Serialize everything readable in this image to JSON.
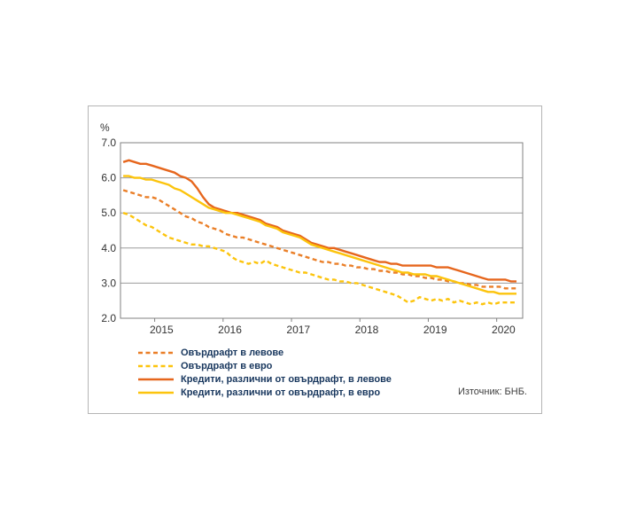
{
  "source": "Източник: БНБ.",
  "chart_data": {
    "type": "line",
    "title": "",
    "xlabel": "",
    "ylabel": "%",
    "ylim": [
      2.0,
      7.0
    ],
    "yticks": [
      2.0,
      3.0,
      4.0,
      5.0,
      6.0,
      7.0
    ],
    "xlim": [
      2014.5,
      2020.38
    ],
    "x_start": 2014.54,
    "x_step_years": 0.08333,
    "xticks": [
      2015,
      2016,
      2017,
      2018,
      2019,
      2020
    ],
    "xtick_labels": [
      "2015",
      "2016",
      "2017",
      "2018",
      "2019",
      "2020"
    ],
    "xlabel_offset": 0.1,
    "grid": "horizontal",
    "legend_position": "bottom-left",
    "x_unit": "monthly",
    "series": [
      {
        "name": "Овърдрафт в левове",
        "line_style": "dashed",
        "color": "#ea7f28",
        "values": [
          5.65,
          5.6,
          5.55,
          5.5,
          5.45,
          5.45,
          5.4,
          5.3,
          5.2,
          5.1,
          5.0,
          4.9,
          4.85,
          4.75,
          4.7,
          4.6,
          4.55,
          4.5,
          4.4,
          4.35,
          4.3,
          4.3,
          4.25,
          4.2,
          4.15,
          4.1,
          4.05,
          4.0,
          3.95,
          3.9,
          3.85,
          3.8,
          3.75,
          3.7,
          3.65,
          3.6,
          3.6,
          3.55,
          3.55,
          3.5,
          3.5,
          3.45,
          3.45,
          3.4,
          3.4,
          3.35,
          3.35,
          3.3,
          3.3,
          3.25,
          3.25,
          3.2,
          3.2,
          3.15,
          3.15,
          3.1,
          3.1,
          3.05,
          3.05,
          3.0,
          3.0,
          2.95,
          2.95,
          2.9,
          2.9,
          2.9,
          2.9,
          2.85,
          2.85,
          2.85
        ]
      },
      {
        "name": "Овърдрафт в евро",
        "line_style": "dashed",
        "color": "#fcc40d",
        "values": [
          5.0,
          4.95,
          4.85,
          4.75,
          4.65,
          4.6,
          4.5,
          4.4,
          4.3,
          4.25,
          4.2,
          4.15,
          4.1,
          4.1,
          4.05,
          4.05,
          4.0,
          3.95,
          3.9,
          3.75,
          3.65,
          3.6,
          3.55,
          3.6,
          3.55,
          3.65,
          3.55,
          3.5,
          3.45,
          3.4,
          3.35,
          3.3,
          3.3,
          3.25,
          3.2,
          3.15,
          3.1,
          3.1,
          3.05,
          3.05,
          3.0,
          3.0,
          2.95,
          2.9,
          2.85,
          2.8,
          2.75,
          2.7,
          2.65,
          2.55,
          2.45,
          2.5,
          2.6,
          2.55,
          2.5,
          2.55,
          2.5,
          2.55,
          2.45,
          2.5,
          2.45,
          2.4,
          2.45,
          2.4,
          2.45,
          2.4,
          2.45,
          2.45,
          2.45,
          2.45
        ]
      },
      {
        "name": "Кредити, различни от овърдрафт, в левове",
        "line_style": "solid",
        "color": "#e6661d",
        "values": [
          6.45,
          6.5,
          6.45,
          6.4,
          6.4,
          6.35,
          6.3,
          6.25,
          6.2,
          6.15,
          6.05,
          6.0,
          5.9,
          5.7,
          5.45,
          5.25,
          5.15,
          5.1,
          5.05,
          5.0,
          5.0,
          4.95,
          4.9,
          4.85,
          4.8,
          4.7,
          4.65,
          4.6,
          4.5,
          4.45,
          4.4,
          4.35,
          4.25,
          4.15,
          4.1,
          4.05,
          4.0,
          4.0,
          3.95,
          3.9,
          3.85,
          3.8,
          3.75,
          3.7,
          3.65,
          3.6,
          3.6,
          3.55,
          3.55,
          3.5,
          3.5,
          3.5,
          3.5,
          3.5,
          3.5,
          3.45,
          3.45,
          3.45,
          3.4,
          3.35,
          3.3,
          3.25,
          3.2,
          3.15,
          3.1,
          3.1,
          3.1,
          3.1,
          3.05,
          3.05
        ]
      },
      {
        "name": "Кредити, различни от овърдрафт, в евро",
        "line_style": "solid",
        "color": "#fcc40d",
        "values": [
          6.05,
          6.05,
          6.0,
          6.0,
          5.95,
          5.95,
          5.9,
          5.85,
          5.8,
          5.7,
          5.65,
          5.55,
          5.45,
          5.35,
          5.25,
          5.15,
          5.1,
          5.05,
          5.0,
          5.0,
          4.95,
          4.9,
          4.85,
          4.8,
          4.75,
          4.65,
          4.6,
          4.55,
          4.45,
          4.4,
          4.35,
          4.3,
          4.2,
          4.1,
          4.05,
          4.0,
          3.95,
          3.9,
          3.85,
          3.8,
          3.75,
          3.7,
          3.65,
          3.6,
          3.55,
          3.5,
          3.45,
          3.4,
          3.35,
          3.3,
          3.3,
          3.25,
          3.25,
          3.25,
          3.2,
          3.2,
          3.15,
          3.1,
          3.05,
          3.0,
          2.95,
          2.9,
          2.85,
          2.8,
          2.75,
          2.75,
          2.7,
          2.7,
          2.7,
          2.7
        ]
      }
    ]
  }
}
